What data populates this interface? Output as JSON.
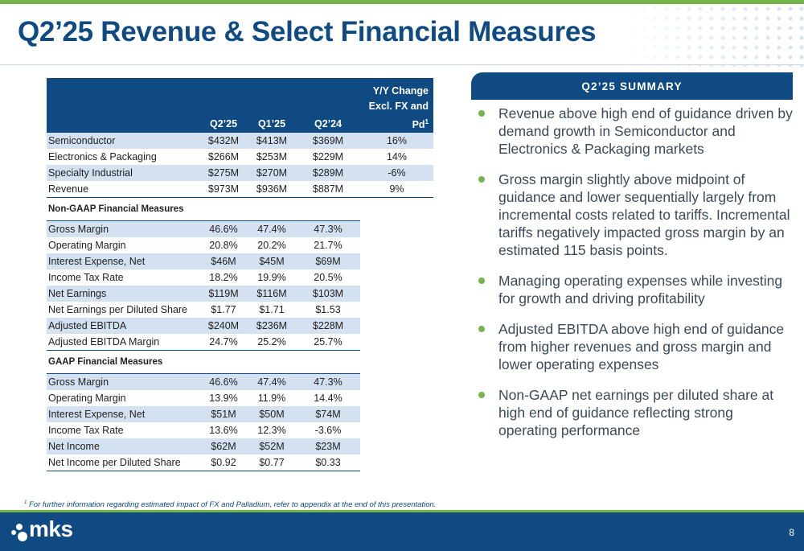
{
  "title": "Q2’25 Revenue & Select Financial Measures",
  "colors": {
    "navy": "#0f4a83",
    "green": "#76b54a",
    "stripe": "#d3e1f1"
  },
  "table": {
    "headers": {
      "q225": "Q2’25",
      "q125": "Q1’25",
      "q224": "Q2’24",
      "yy_line1": "Y/Y Change",
      "yy_line2": "Excl. FX and",
      "yy_line3": "Pd",
      "yy_sup": "1"
    },
    "revenue_rows": [
      {
        "label": "Semiconductor",
        "q225": "$432M",
        "q125": "$413M",
        "q224": "$369M",
        "yy": "16%"
      },
      {
        "label": "Electronics & Packaging",
        "q225": "$266M",
        "q125": "$253M",
        "q224": "$229M",
        "yy": "14%"
      },
      {
        "label": "Specialty Industrial",
        "q225": "$275M",
        "q125": "$270M",
        "q224": "$289M",
        "yy": "-6%"
      },
      {
        "label": "Revenue",
        "q225": "$973M",
        "q125": "$936M",
        "q224": "$887M",
        "yy": "9%"
      }
    ],
    "non_gaap_title": "Non-GAAP Financial Measures",
    "non_gaap_rows": [
      {
        "label": "Gross Margin",
        "q225": "46.6%",
        "q125": "47.4%",
        "q224": "47.3%"
      },
      {
        "label": "Operating Margin",
        "q225": "20.8%",
        "q125": "20.2%",
        "q224": "21.7%"
      },
      {
        "label": "Interest Expense, Net",
        "q225": "$46M",
        "q125": "$45M",
        "q224": "$69M"
      },
      {
        "label": "Income Tax Rate",
        "q225": "18.2%",
        "q125": "19.9%",
        "q224": "20.5%"
      },
      {
        "label": "Net Earnings",
        "q225": "$119M",
        "q125": "$116M",
        "q224": "$103M"
      },
      {
        "label": "Net Earnings per Diluted Share",
        "q225": "$1.77",
        "q125": "$1.71",
        "q224": "$1.53"
      },
      {
        "label": "Adjusted EBITDA",
        "q225": "$240M",
        "q125": "$236M",
        "q224": "$228M"
      },
      {
        "label": "Adjusted EBITDA Margin",
        "q225": "24.7%",
        "q125": "25.2%",
        "q224": "25.7%"
      }
    ],
    "gaap_title": "GAAP Financial Measures",
    "gaap_rows": [
      {
        "label": "Gross Margin",
        "q225": "46.6%",
        "q125": "47.4%",
        "q224": "47.3%"
      },
      {
        "label": "Operating Margin",
        "q225": "13.9%",
        "q125": "11.9%",
        "q224": "14.4%"
      },
      {
        "label": "Interest Expense, Net",
        "q225": "$51M",
        "q125": "$50M",
        "q224": "$74M"
      },
      {
        "label": "Income Tax Rate",
        "q225": "13.6%",
        "q125": "12.3%",
        "q224": "-3.6%"
      },
      {
        "label": "Net Income",
        "q225": "$62M",
        "q125": "$52M",
        "q224": "$23M"
      },
      {
        "label": "Net Income per Diluted Share",
        "q225": "$0.92",
        "q125": "$0.77",
        "q224": "$0.33"
      }
    ]
  },
  "summary": {
    "header": "Q2’25 SUMMARY",
    "bullets": [
      "Revenue above high end of guidance driven by demand growth in Semiconductor and Electronics & Packaging markets",
      "Gross margin slightly above midpoint of guidance and lower sequentially largely from incremental costs related to tariffs. Incremental tariffs negatively impacted gross margin by an estimated 115 basis points.",
      "Managing operating expenses while investing for growth and driving profitability",
      "Adjusted EBITDA above high end of guidance from higher revenues and gross margin and lower operating expenses",
      "Non-GAAP net earnings per diluted share at high end of guidance reflecting strong operating performance"
    ]
  },
  "footnote": {
    "sup": "1",
    "text": " For further information regarding estimated impact of FX and Palladium, refer to appendix at the end of this presentation."
  },
  "footer": {
    "logo_text": "mks",
    "page_number": "8"
  }
}
